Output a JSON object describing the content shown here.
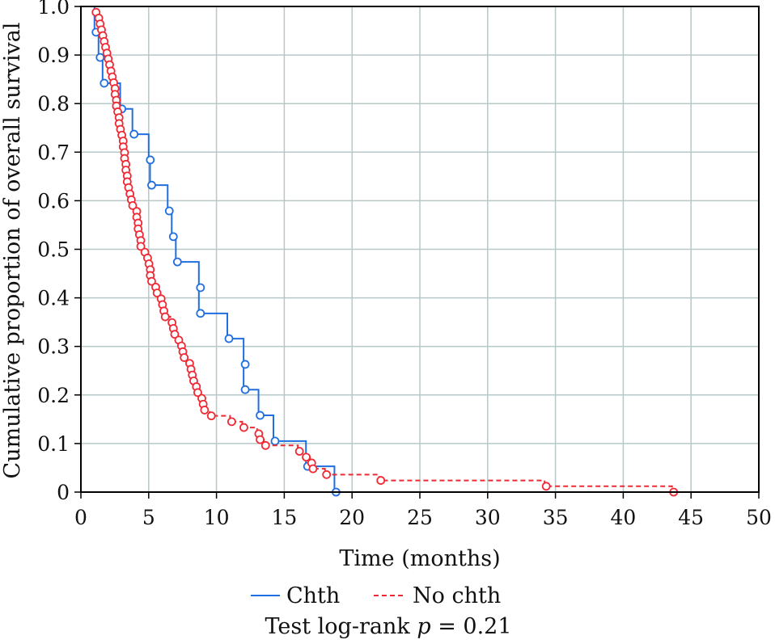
{
  "chart_data": {
    "type": "line",
    "subtype": "kaplan-meier",
    "xlabel": "Time (months)",
    "ylabel": "Cumulative proportion of overall survival",
    "xlim": [
      0,
      50
    ],
    "ylim": [
      0,
      1.0
    ],
    "xticks": [
      "0",
      "5",
      "10",
      "15",
      "20",
      "25",
      "30",
      "35",
      "40",
      "45",
      "50"
    ],
    "yticks": [
      "0",
      "0.1",
      "0.2",
      "0.3",
      "0.4",
      "0.5",
      "0.6",
      "0.7",
      "0.8",
      "0.9",
      "1.0"
    ],
    "grid": true,
    "legend_position": "bottom",
    "annotation": {
      "prefix": "Test log-rank ",
      "italic": "p",
      "suffix": " = 0.21"
    },
    "series": [
      {
        "name": "Chth",
        "color": "#1f6fe0",
        "line_style": "solid",
        "points": [
          [
            1.0,
            0.947
          ],
          [
            1.3,
            0.895
          ],
          [
            1.6,
            0.842
          ],
          [
            2.9,
            0.789
          ],
          [
            3.8,
            0.737
          ],
          [
            5.0,
            0.684
          ],
          [
            5.1,
            0.632
          ],
          [
            6.4,
            0.579
          ],
          [
            6.7,
            0.526
          ],
          [
            7.0,
            0.474
          ],
          [
            8.7,
            0.421
          ],
          [
            8.7,
            0.368
          ],
          [
            10.8,
            0.316
          ],
          [
            12.0,
            0.263
          ],
          [
            12.0,
            0.211
          ],
          [
            13.1,
            0.158
          ],
          [
            14.2,
            0.105
          ],
          [
            16.6,
            0.053
          ],
          [
            18.7,
            0.0
          ]
        ]
      },
      {
        "name": "No chth",
        "color": "#ee2a35",
        "line_style": "dashed",
        "points": [
          [
            1.0,
            0.988
          ],
          [
            1.2,
            0.976
          ],
          [
            1.3,
            0.964
          ],
          [
            1.4,
            0.952
          ],
          [
            1.5,
            0.94
          ],
          [
            1.6,
            0.928
          ],
          [
            1.7,
            0.916
          ],
          [
            1.8,
            0.904
          ],
          [
            1.9,
            0.892
          ],
          [
            2.0,
            0.88
          ],
          [
            2.1,
            0.867
          ],
          [
            2.2,
            0.855
          ],
          [
            2.3,
            0.843
          ],
          [
            2.4,
            0.831
          ],
          [
            2.4,
            0.819
          ],
          [
            2.5,
            0.807
          ],
          [
            2.5,
            0.795
          ],
          [
            2.6,
            0.783
          ],
          [
            2.7,
            0.771
          ],
          [
            2.7,
            0.759
          ],
          [
            2.8,
            0.747
          ],
          [
            2.9,
            0.735
          ],
          [
            3.0,
            0.723
          ],
          [
            3.0,
            0.711
          ],
          [
            3.1,
            0.699
          ],
          [
            3.1,
            0.687
          ],
          [
            3.2,
            0.675
          ],
          [
            3.2,
            0.663
          ],
          [
            3.3,
            0.651
          ],
          [
            3.3,
            0.639
          ],
          [
            3.4,
            0.627
          ],
          [
            3.5,
            0.614
          ],
          [
            3.6,
            0.602
          ],
          [
            3.7,
            0.59
          ],
          [
            4.0,
            0.578
          ],
          [
            4.0,
            0.566
          ],
          [
            4.1,
            0.554
          ],
          [
            4.1,
            0.542
          ],
          [
            4.2,
            0.53
          ],
          [
            4.3,
            0.518
          ],
          [
            4.3,
            0.506
          ],
          [
            4.6,
            0.494
          ],
          [
            4.8,
            0.482
          ],
          [
            4.9,
            0.47
          ],
          [
            5.0,
            0.458
          ],
          [
            5.0,
            0.446
          ],
          [
            5.1,
            0.434
          ],
          [
            5.4,
            0.422
          ],
          [
            5.5,
            0.41
          ],
          [
            5.8,
            0.398
          ],
          [
            5.9,
            0.386
          ],
          [
            6.0,
            0.373
          ],
          [
            6.1,
            0.361
          ],
          [
            6.6,
            0.349
          ],
          [
            6.7,
            0.337
          ],
          [
            6.8,
            0.325
          ],
          [
            7.1,
            0.313
          ],
          [
            7.3,
            0.301
          ],
          [
            7.4,
            0.289
          ],
          [
            7.5,
            0.277
          ],
          [
            7.9,
            0.265
          ],
          [
            8.0,
            0.253
          ],
          [
            8.1,
            0.241
          ],
          [
            8.2,
            0.229
          ],
          [
            8.4,
            0.217
          ],
          [
            8.5,
            0.205
          ],
          [
            8.8,
            0.193
          ],
          [
            8.9,
            0.181
          ],
          [
            9.0,
            0.169
          ],
          [
            9.5,
            0.157
          ],
          [
            11.0,
            0.145
          ],
          [
            11.9,
            0.133
          ],
          [
            13.0,
            0.12
          ],
          [
            13.1,
            0.108
          ],
          [
            13.5,
            0.096
          ],
          [
            16.0,
            0.084
          ],
          [
            16.5,
            0.072
          ],
          [
            16.9,
            0.06
          ],
          [
            17.0,
            0.048
          ],
          [
            18.0,
            0.036
          ],
          [
            22.0,
            0.024
          ],
          [
            34.2,
            0.012
          ],
          [
            43.6,
            0.0
          ]
        ]
      }
    ]
  }
}
